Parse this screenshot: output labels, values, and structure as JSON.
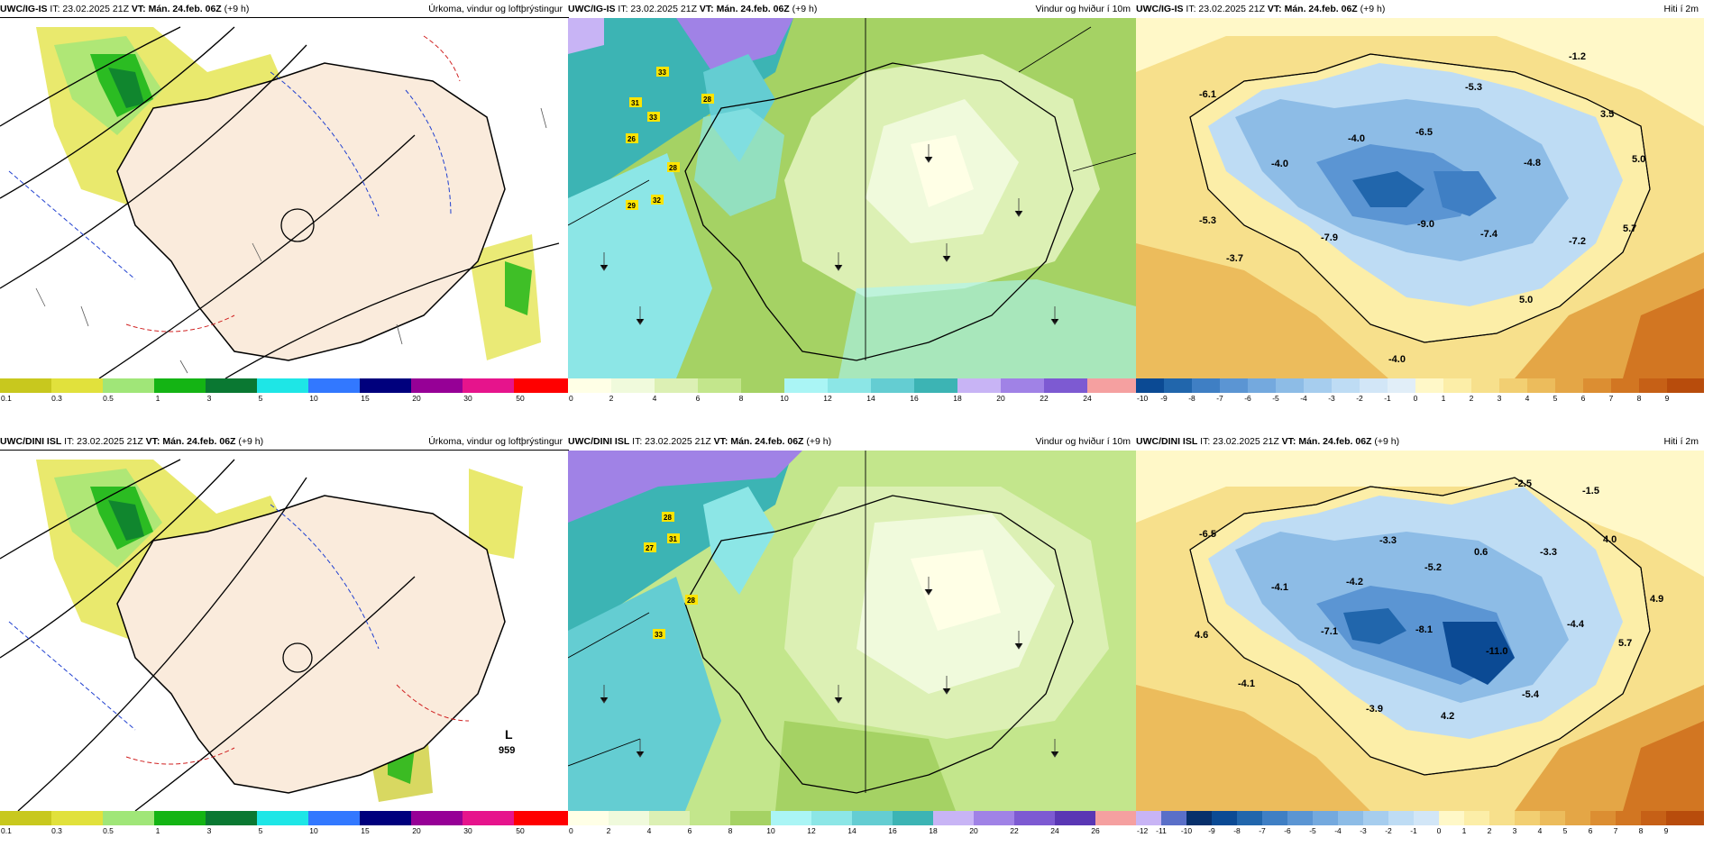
{
  "rows": [
    {
      "model": "UWC/IG-IS",
      "it": "IT: 23.02.2025 21Z",
      "vt": "VT: Mán. 24.feb. 06Z",
      "lead": "(+9 h)",
      "panels": {
        "precip": {
          "title": "Úrkoma, vindur og loftþrýstingur",
          "scale": [
            "0.1",
            "0.3",
            "0.5",
            "1",
            "3",
            "5",
            "10",
            "15",
            "20",
            "30",
            "50"
          ],
          "low_label": ""
        },
        "wind": {
          "title": "Vindur og hviður í 10m",
          "scale": [
            "0",
            "2",
            "4",
            "6",
            "8",
            "10",
            "12",
            "14",
            "16",
            "18",
            "20",
            "22",
            "24"
          ],
          "gusts": [
            "33",
            "28",
            "31",
            "33",
            "26",
            "28",
            "29",
            "32"
          ]
        },
        "temp": {
          "title": "Hiti í 2m",
          "scale": [
            "-10",
            "-9",
            "-8",
            "-7",
            "-6",
            "-5",
            "-4",
            "-3",
            "-2",
            "-1",
            "0",
            "1",
            "2",
            "3",
            "4",
            "5",
            "6",
            "7",
            "8",
            "9"
          ],
          "values": [
            "-6.1",
            "-5.3",
            "-1.2",
            "3.5",
            "-6.5",
            "-4.0",
            "-4.0",
            "-4.8",
            "5.0",
            "-5.3",
            "-7.9",
            "-9.0",
            "-7.4",
            "-7.2",
            "5.7",
            "-3.7",
            "5.0",
            "-4.0"
          ]
        }
      }
    },
    {
      "model": "UWC/DINI ISL",
      "it": "IT: 23.02.2025 21Z",
      "vt": "VT: Mán. 24.feb. 06Z",
      "lead": "(+9 h)",
      "panels": {
        "precip": {
          "title": "Úrkoma, vindur og loftþrýstingur",
          "scale": [
            "0.1",
            "0.3",
            "0.5",
            "1",
            "3",
            "5",
            "10",
            "15",
            "20",
            "30",
            "50"
          ],
          "low_label": "L",
          "low_value": "959"
        },
        "wind": {
          "title": "Vindur og hviður í 10m",
          "scale": [
            "0",
            "2",
            "4",
            "6",
            "8",
            "10",
            "12",
            "14",
            "16",
            "18",
            "20",
            "22",
            "24",
            "26"
          ],
          "gusts": [
            "28",
            "31",
            "27",
            "28",
            "33"
          ]
        },
        "temp": {
          "title": "Hiti í 2m",
          "scale": [
            "-12",
            "-11",
            "-10",
            "-9",
            "-8",
            "-7",
            "-6",
            "-5",
            "-4",
            "-3",
            "-2",
            "-1",
            "0",
            "1",
            "2",
            "3",
            "4",
            "5",
            "6",
            "7",
            "8",
            "9"
          ],
          "values": [
            "-2.5",
            "-1.5",
            "-6.5",
            "-3.3",
            "0.6",
            "-3.3",
            "4.0",
            "-5.2",
            "-4.1",
            "-4.2",
            "4.9",
            "4.6",
            "-7.1",
            "-8.1",
            "-11.0",
            "-4.4",
            "5.7",
            "-4.1",
            "-3.9",
            "4.2",
            "-5.4"
          ]
        }
      }
    }
  ],
  "colors": {
    "precip": [
      "#c8c81e",
      "#e1e13c",
      "#a0e678",
      "#14b414",
      "#0a7832",
      "#1ee6e6",
      "#3278ff",
      "#00007d",
      "#960096",
      "#e6148c",
      "#ff0000"
    ],
    "wind": [
      "#ffffe6",
      "#f0fadc",
      "#dcf0b4",
      "#c3e68c",
      "#a5d264",
      "#aaf5f5",
      "#8ce6e6",
      "#64cdd2",
      "#3cb4b4",
      "#c8b4f5",
      "#a082e6",
      "#7d5ad2",
      "#5a37b4",
      "#f5a0a0"
    ],
    "temp_cold": [
      "#08306b",
      "#0b4a94",
      "#2166ac",
      "#3f7fc4",
      "#5b95d3",
      "#74a9de",
      "#8dbce6",
      "#a6cdee",
      "#bedcf4",
      "#d2e6f7",
      "#e1eef8",
      "#ecf4f9"
    ],
    "temp_warm": [
      "#fff8c8",
      "#fceea8",
      "#f7e08c",
      "#f2cf72",
      "#ecbc5c",
      "#e4a646",
      "#dc8e32",
      "#d27622",
      "#c66016",
      "#b84c0c"
    ],
    "iceland_land_precip": "#faebdc"
  }
}
